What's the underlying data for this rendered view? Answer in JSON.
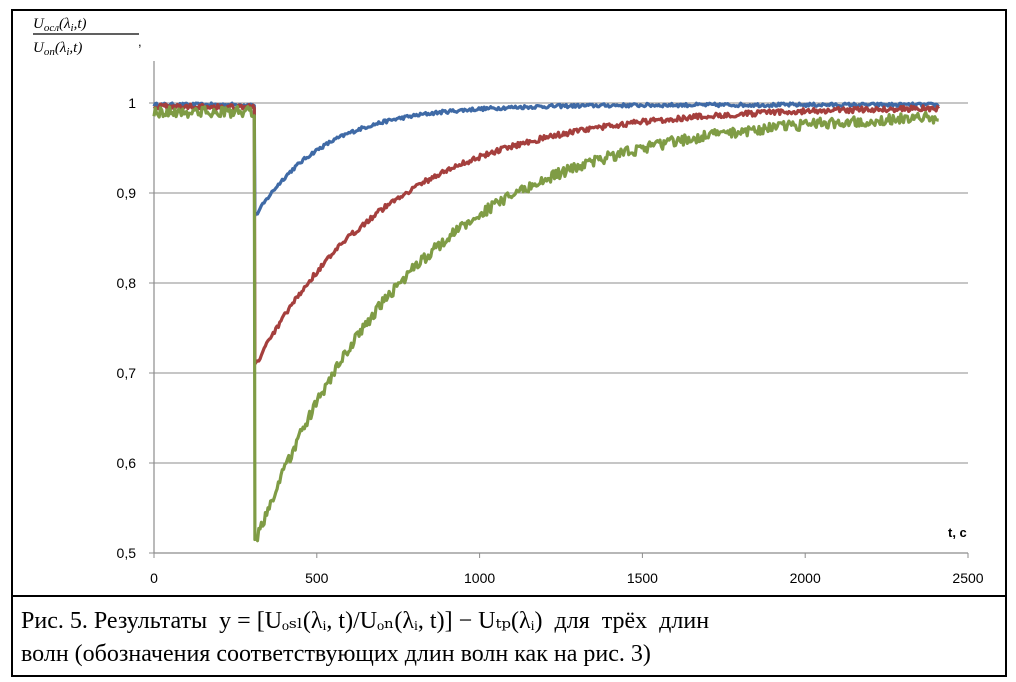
{
  "chart_data": {
    "type": "line",
    "ylabel": {
      "numerator": "U_осл(λ_i,t)",
      "numerator_main": "U",
      "numerator_sub": "осл",
      "numerator_args": "(λ",
      "numerator_args_sub": "i",
      "numerator_args_end": ",t)",
      "denominator_main": "U",
      "denominator_sub": "оп",
      "denominator_args": "(λ",
      "denominator_args_sub": "i",
      "denominator_args_end": ",t)",
      "punct": ","
    },
    "xlabel": "t, c",
    "xlim": [
      0,
      2500
    ],
    "ylim": [
      0.5,
      1.0
    ],
    "x_ticks": [
      "0",
      "500",
      "1000",
      "1500",
      "2000",
      "2500"
    ],
    "y_ticks": [
      "0,5",
      "0,6",
      "0,7",
      "0,8",
      "0,9",
      "1"
    ],
    "grid": "horizontal",
    "series": [
      {
        "color": "#3f6aa6",
        "baseline": 0.998,
        "noise": 0.002,
        "drop_x": 310,
        "min": 0.875,
        "tau": 210,
        "end_x": 2410
      },
      {
        "color": "#a53f3d",
        "baseline": 0.996,
        "noise": 0.003,
        "drop_x": 310,
        "min": 0.71,
        "tau": 420,
        "end_x": 2410
      },
      {
        "color": "#7f9c45",
        "baseline": 0.99,
        "noise": 0.006,
        "drop_x": 310,
        "min": 0.515,
        "tau": 480,
        "end_x": 2410
      }
    ]
  },
  "caption": {
    "line1": "Рис. 5. Результаты  y = [Uₒₛₗ(λᵢ, t)/Uₒₙ(λᵢ, t)] − Uₜₚ(λᵢ)  для  трёх  длин",
    "line2": "волн (обозначения соответствующих длин волн как на рис. 3)"
  }
}
